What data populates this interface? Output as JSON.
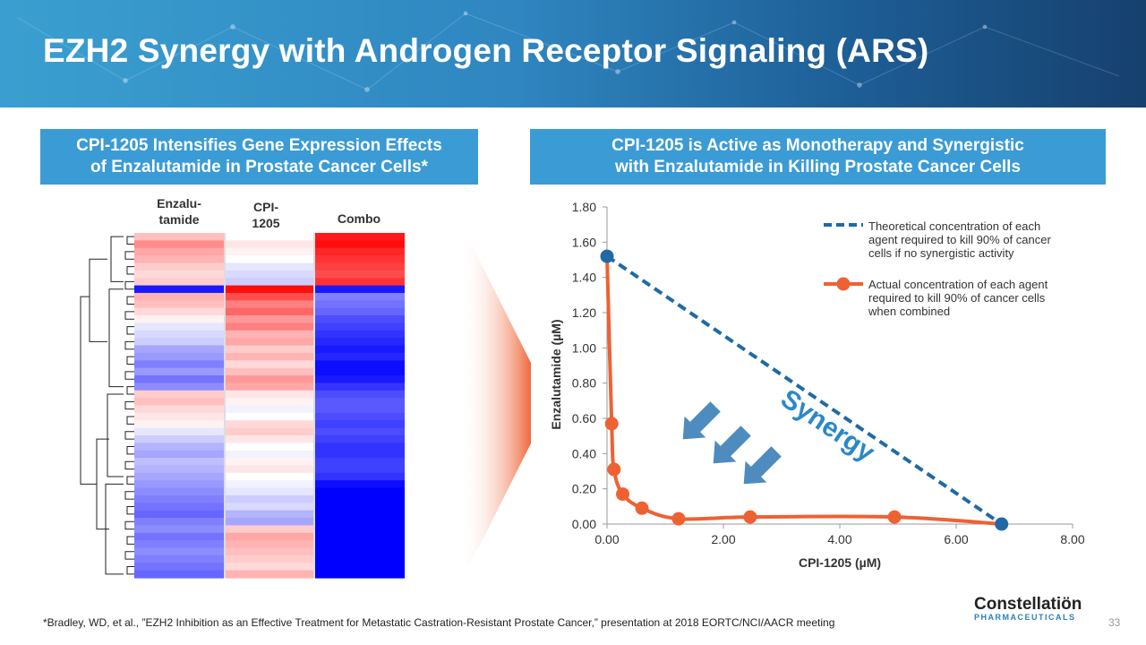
{
  "header": {
    "title": "EZH2 Synergy with Androgen Receptor Signaling (ARS)"
  },
  "left_panel": {
    "heading_line1": "CPI-1205 Intensifies Gene Expression Effects",
    "heading_line2": "of Enzalutamide in Prostate Cancer Cells*",
    "col1_line1": "Enzalu-",
    "col1_line2": "tamide",
    "col2_line1": "CPI-",
    "col2_line2": "1205",
    "col3": "Combo"
  },
  "right_panel": {
    "heading_line1": "CPI-1205 is Active as Monotherapy and Synergistic",
    "heading_line2": "with Enzalutamide in Killing Prostate Cancer Cells"
  },
  "chart_data": {
    "type": "line",
    "xlabel": "CPI-1205 (µM)",
    "ylabel": "Enzalutamide (µM)",
    "xlim": [
      0,
      8
    ],
    "ylim": [
      0,
      1.8
    ],
    "x_ticks": [
      "0.00",
      "2.00",
      "4.00",
      "6.00",
      "8.00"
    ],
    "y_ticks": [
      "0.00",
      "0.20",
      "0.40",
      "0.60",
      "0.80",
      "1.00",
      "1.20",
      "1.40",
      "1.60",
      "1.80"
    ],
    "series": [
      {
        "name": "Theoretical concentration of each agent required to kill 90% of cancer cells if no synergistic activity",
        "legend_lines": [
          "Theoretical concentration of each",
          "agent required to kill 90% of cancer",
          "cells if no synergistic activity"
        ],
        "style": "dashed",
        "color": "#1f6aa5",
        "x": [
          0.0,
          6.78
        ],
        "y": [
          1.52,
          0.0
        ]
      },
      {
        "name": "Actual concentration of each agent required to kill 90% of cancer cells when combined",
        "legend_lines": [
          "Actual concentration of each agent",
          "required to kill 90% of cancer cells",
          "when combined"
        ],
        "style": "solid",
        "color": "#ee6133",
        "x": [
          0.0,
          0.08,
          0.12,
          0.27,
          0.6,
          1.23,
          2.46,
          4.94,
          6.78
        ],
        "y": [
          1.52,
          0.57,
          0.31,
          0.17,
          0.09,
          0.03,
          0.04,
          0.04,
          0.0
        ]
      }
    ],
    "annotation": "Synergy",
    "grid": false,
    "legend_position": "top-right"
  },
  "heatmap": {
    "type": "heatmap",
    "columns": [
      "Enzalutamide",
      "CPI-1205",
      "Combo"
    ],
    "rows": [
      [
        0.25,
        0.0,
        0.9
      ],
      [
        0.45,
        0.1,
        0.95
      ],
      [
        0.35,
        0.05,
        0.85
      ],
      [
        0.3,
        0.0,
        0.8
      ],
      [
        0.2,
        -0.1,
        0.75
      ],
      [
        0.15,
        -0.15,
        0.7
      ],
      [
        0.2,
        -0.2,
        0.8
      ],
      [
        -0.9,
        0.95,
        -0.9
      ],
      [
        0.3,
        0.7,
        -0.5
      ],
      [
        0.25,
        0.5,
        -0.55
      ],
      [
        0.15,
        0.6,
        -0.6
      ],
      [
        0.05,
        0.4,
        -0.7
      ],
      [
        -0.1,
        0.5,
        -0.75
      ],
      [
        -0.15,
        0.3,
        -0.8
      ],
      [
        -0.2,
        0.35,
        -0.85
      ],
      [
        -0.35,
        0.2,
        -0.9
      ],
      [
        -0.4,
        0.3,
        -0.85
      ],
      [
        -0.5,
        0.15,
        -0.95
      ],
      [
        -0.4,
        0.25,
        -0.95
      ],
      [
        -0.55,
        0.4,
        -0.9
      ],
      [
        -0.45,
        0.35,
        -0.8
      ],
      [
        0.2,
        0.1,
        -0.7
      ],
      [
        0.25,
        0.05,
        -0.65
      ],
      [
        0.15,
        -0.05,
        -0.65
      ],
      [
        0.1,
        0.0,
        -0.7
      ],
      [
        0.05,
        0.15,
        -0.75
      ],
      [
        -0.1,
        0.2,
        -0.7
      ],
      [
        -0.2,
        0.1,
        -0.75
      ],
      [
        -0.3,
        0.0,
        -0.8
      ],
      [
        -0.35,
        -0.05,
        -0.8
      ],
      [
        -0.25,
        0.05,
        -0.75
      ],
      [
        -0.3,
        0.1,
        -0.75
      ],
      [
        -0.35,
        0.0,
        -0.8
      ],
      [
        -0.4,
        -0.05,
        -0.95
      ],
      [
        -0.45,
        -0.1,
        -1.0
      ],
      [
        -0.5,
        -0.2,
        -1.0
      ],
      [
        -0.55,
        -0.15,
        -1.0
      ],
      [
        -0.6,
        -0.3,
        -1.0
      ],
      [
        -0.5,
        -0.35,
        -1.0
      ],
      [
        -0.45,
        0.2,
        -1.0
      ],
      [
        -0.55,
        0.35,
        -1.0
      ],
      [
        -0.5,
        0.3,
        -1.0
      ],
      [
        -0.45,
        0.25,
        -1.0
      ],
      [
        -0.5,
        0.2,
        -1.0
      ],
      [
        -0.55,
        0.15,
        -1.0
      ],
      [
        -0.6,
        0.3,
        -1.0
      ]
    ]
  },
  "footnote": "*Bradley, WD, et al., ”EZH2  Inhibition as an Effective Treatment for Metastatic Castration-Resistant Prostate Cancer,” presentation at 2018 EORTC/NCI/AACR meeting",
  "logo": {
    "brand": "Constellatiön",
    "sub": "PHARMACEUTICALS"
  },
  "page_number": "33",
  "colors": {
    "header": "#2f86c0",
    "panel_heading": "#3a9bd5",
    "dashed_line": "#1f6aa5",
    "actual_line": "#ee6133"
  }
}
